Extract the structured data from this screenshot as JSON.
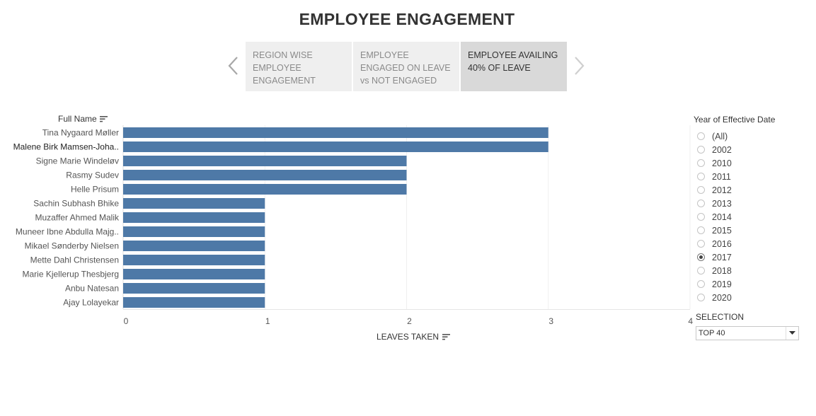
{
  "page": {
    "title": "EMPLOYEE ENGAGEMENT"
  },
  "story_tabs": [
    {
      "label": "REGION WISE EMPLOYEE ENGAGEMENT",
      "active": false
    },
    {
      "label": "EMPLOYEE ENGAGED ON LEAVE vs NOT ENGAGED",
      "active": false
    },
    {
      "label": "EMPLOYEE AVAILING 40% OF LEAVE",
      "active": true
    }
  ],
  "icons": {
    "prev": "chevron-left-icon",
    "next": "chevron-right-icon",
    "sort": "sort-descending-icon",
    "dropdown": "caret-down-icon"
  },
  "chart_data": {
    "type": "bar",
    "orientation": "horizontal",
    "ylabel": "Full Name",
    "xlabel": "LEAVES TAKEN",
    "xlim": [
      0,
      4
    ],
    "xticks": [
      0,
      1,
      2,
      3,
      4
    ],
    "bar_color": "#4e79a7",
    "grid": true,
    "categories": [
      "Tina Nygaard Møller",
      "Malene Birk Mamsen-Joha..",
      "Signe Marie Windeløv",
      "Rasmy Sudev",
      "Helle Prisum",
      "Sachin Subhash Bhike",
      "Muzaffer Ahmed Malik",
      "Muneer Ibne Abdulla Majg..",
      "Mikael Sønderby Nielsen",
      "Mette Dahl Christensen",
      "Marie Kjellerup Thesbjerg",
      "Anbu Natesan",
      "Ajay Lolayekar"
    ],
    "values": [
      3,
      3,
      2,
      2,
      2,
      1,
      1,
      1,
      1,
      1,
      1,
      1,
      1
    ],
    "highlighted_category": "Malene Birk Mamsen-Joha.."
  },
  "filters": {
    "year": {
      "title": "Year of Effective Date",
      "options": [
        "(All)",
        "2002",
        "2010",
        "2011",
        "2012",
        "2013",
        "2014",
        "2015",
        "2016",
        "2017",
        "2018",
        "2019",
        "2020"
      ],
      "selected": "2017"
    },
    "selection": {
      "label": "SELECTION",
      "value": "TOP 40"
    }
  }
}
